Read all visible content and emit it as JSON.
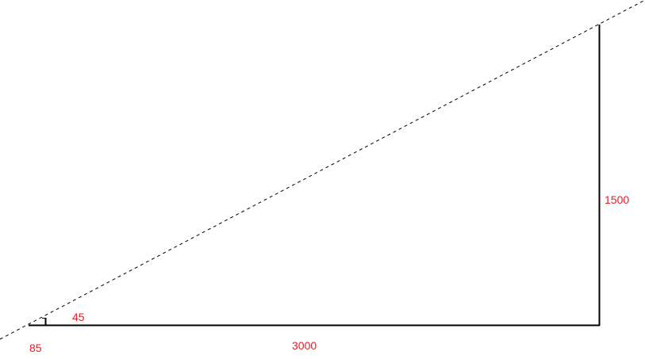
{
  "labels": {
    "base_length": "3000",
    "height": "1500",
    "small_offset": "45",
    "corner_offset": "85"
  },
  "colors": {
    "dimension_text": "#e0202a",
    "lines": "#000000"
  }
}
